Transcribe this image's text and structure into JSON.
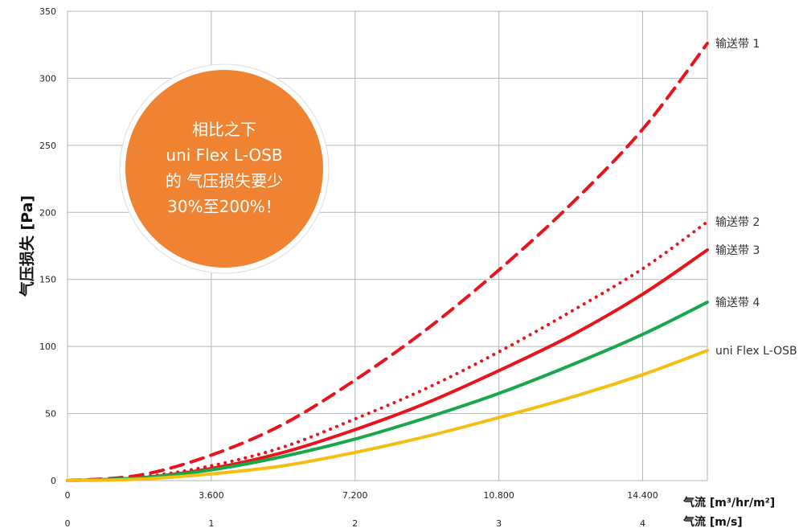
{
  "chart_data": {
    "type": "line",
    "ylabel": "气压损失 [Pa]",
    "x_primary_label": "气流 [m³/hr/m²]",
    "x_secondary_label": "气流 [m/s]",
    "x_secondary_ticks": [
      0,
      1,
      2,
      3,
      4
    ],
    "x_primary_ticks": [
      "0",
      "3.600",
      "7.200",
      "10.800",
      "14.400"
    ],
    "xlim": [
      0,
      4.45
    ],
    "ylim": [
      0,
      350
    ],
    "y_ticks": [
      0,
      50,
      100,
      150,
      200,
      250,
      300,
      350
    ],
    "grid": true,
    "legend_placement": "right end of each line",
    "callout": {
      "lines": [
        "相比之下",
        "uni Flex L-OSB",
        "的 气压损失要少",
        "30%至200%！"
      ],
      "color": "#F08331"
    },
    "series": [
      {
        "name": "输送带 1",
        "color": "#E8131B",
        "style": "dashed",
        "points": [
          [
            0,
            0
          ],
          [
            0.5,
            4
          ],
          [
            1,
            19
          ],
          [
            1.5,
            42
          ],
          [
            2,
            75
          ],
          [
            2.5,
            113
          ],
          [
            3,
            157
          ],
          [
            3.5,
            206
          ],
          [
            4,
            262
          ],
          [
            4.45,
            326
          ]
        ]
      },
      {
        "name": "输送带 2",
        "color": "#E8131B",
        "style": "dotted",
        "points": [
          [
            0,
            0
          ],
          [
            0.5,
            2.5
          ],
          [
            1,
            11
          ],
          [
            1.5,
            25
          ],
          [
            2,
            46
          ],
          [
            2.5,
            69
          ],
          [
            3,
            96
          ],
          [
            3.5,
            126
          ],
          [
            4,
            158
          ],
          [
            4.45,
            193
          ]
        ]
      },
      {
        "name": "输送带 3",
        "color": "#E8131B",
        "style": "solid",
        "points": [
          [
            0,
            0
          ],
          [
            0.5,
            2
          ],
          [
            1,
            9
          ],
          [
            1.5,
            21
          ],
          [
            2,
            38
          ],
          [
            2.5,
            58
          ],
          [
            3,
            82
          ],
          [
            3.5,
            108
          ],
          [
            4,
            139
          ],
          [
            4.45,
            172
          ]
        ]
      },
      {
        "name": "输送带 4",
        "color": "#16A84B",
        "style": "solid",
        "points": [
          [
            0,
            0
          ],
          [
            0.5,
            2
          ],
          [
            1,
            8
          ],
          [
            1.5,
            18
          ],
          [
            2,
            31
          ],
          [
            2.5,
            47
          ],
          [
            3,
            65
          ],
          [
            3.5,
            86
          ],
          [
            4,
            109
          ],
          [
            4.45,
            133
          ]
        ]
      },
      {
        "name": "uni Flex L-OSB",
        "color": "#F6BE10",
        "style": "solid",
        "points": [
          [
            0,
            0
          ],
          [
            0.5,
            1
          ],
          [
            1,
            5
          ],
          [
            1.5,
            11
          ],
          [
            2,
            21
          ],
          [
            2.5,
            33
          ],
          [
            3,
            47
          ],
          [
            3.5,
            62
          ],
          [
            4,
            79
          ],
          [
            4.45,
            97
          ]
        ]
      }
    ]
  }
}
